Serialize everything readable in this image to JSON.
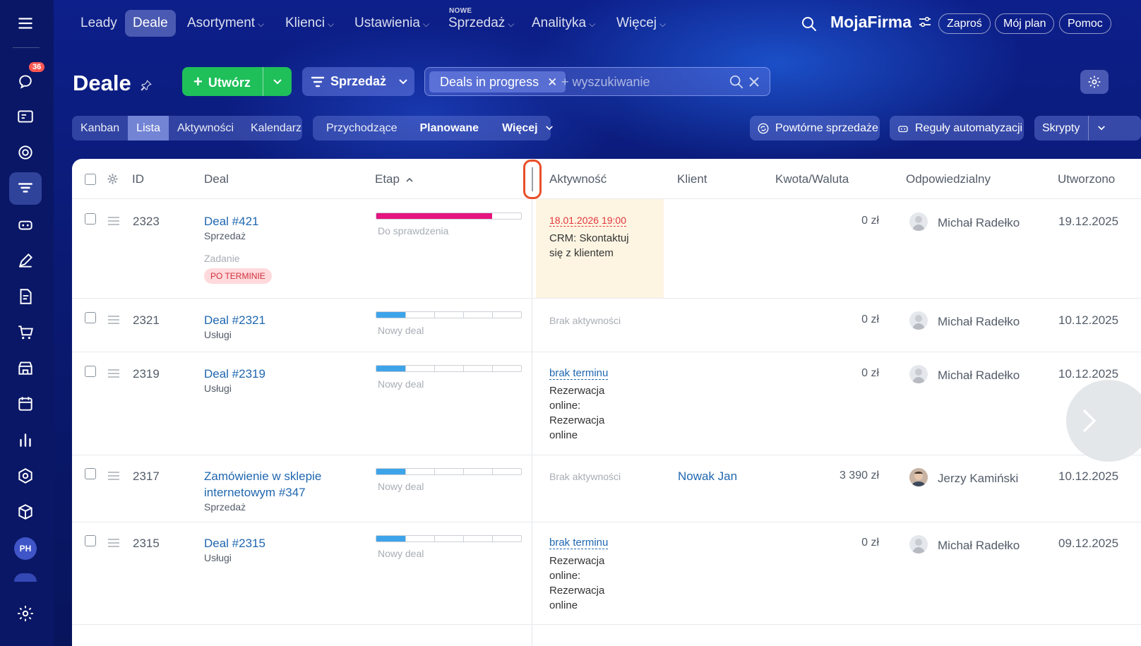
{
  "sidebar": {
    "badge_count": "36",
    "avatar_initials": "PH",
    "icons": [
      "menu-icon",
      "chat-icon",
      "contact-card-icon",
      "target-icon",
      "funnel-icon",
      "robot-icon",
      "pen-icon",
      "document-icon",
      "cart-icon",
      "store-icon",
      "calendar-icon",
      "chart-icon",
      "hexagon-icon",
      "box-icon",
      "settings-icon"
    ]
  },
  "topnav": {
    "items": [
      "Leady",
      "Deale",
      "Asortyment",
      "Klienci",
      "Ustawienia",
      "Sprzedaż",
      "Analityka",
      "Więcej"
    ],
    "new_label": "NOWE",
    "brand": "MojaFirma",
    "invite": "Zaproś",
    "plan": "Mój plan",
    "help": "Pomoc"
  },
  "header": {
    "title": "Deale",
    "create_label": "Utwórz",
    "pipeline_label": "Sprzedaż",
    "filter_tag": "Deals in progress",
    "search_placeholder": "+ wyszukiwanie"
  },
  "views": {
    "tabs": [
      "Kanban",
      "Lista",
      "Aktywności",
      "Kalendarz"
    ],
    "active_tab": "Lista",
    "filters": [
      "Przychodzące",
      "Planowane",
      "Więcej"
    ],
    "repeat_sales": "Powtórne sprzedaże",
    "automation": "Reguły automatyzacji",
    "scripts": "Skrypty"
  },
  "table": {
    "columns": [
      "ID",
      "Deal",
      "Etap",
      "Aktywność",
      "Klient",
      "Kwota/Waluta",
      "Odpowiedzialny",
      "Utworzono"
    ],
    "rows": [
      {
        "id": "2323",
        "deal": "Deal #421",
        "category": "Sprzedaż",
        "task_label": "Zadanie",
        "task_badge": "PO TERMINIE",
        "stage": "Do sprawdzenia",
        "stage_progress": 0.8,
        "stage_color": "#e5147f",
        "activity_date": "18.01.2026 19:00",
        "activity_text": "CRM: Skontaktuj się z klientem",
        "client": "",
        "amount": "0 zł",
        "responsible": "Michał Radełko",
        "created": "19.12.2025"
      },
      {
        "id": "2321",
        "deal": "Deal #2321",
        "category": "Usługi",
        "stage": "Nowy deal",
        "stage_progress": 0.2,
        "stage_color": "#3ea4ea",
        "activity_none": "Brak aktywności",
        "client": "",
        "amount": "0 zł",
        "responsible": "Michał Radełko",
        "created": "10.12.2025"
      },
      {
        "id": "2319",
        "deal": "Deal #2319",
        "category": "Usługi",
        "stage": "Nowy deal",
        "stage_progress": 0.2,
        "stage_color": "#3ea4ea",
        "activity_link": "brak terminu",
        "activity_text": "Rezerwacja online: Rezerwacja online",
        "client": "",
        "amount": "0 zł",
        "responsible": "Michał Radełko",
        "created": "10.12.2025"
      },
      {
        "id": "2317",
        "deal_line1": "Zamówienie w sklepie",
        "deal_line2": "internetowym #347",
        "category": "Sprzedaż",
        "stage": "Nowy deal",
        "stage_progress": 0.2,
        "stage_color": "#3ea4ea",
        "activity_none": "Brak aktywności",
        "client": "Nowak Jan",
        "amount": "3 390 zł",
        "responsible": "Jerzy Kamiński",
        "created": "10.12.2025"
      },
      {
        "id": "2315",
        "deal": "Deal #2315",
        "category": "Usługi",
        "stage": "Nowy deal",
        "stage_progress": 0.2,
        "stage_color": "#3ea4ea",
        "activity_link": "brak terminu",
        "activity_text": "Rezerwacja online: Rezerwacja online",
        "client": "",
        "amount": "0 zł",
        "responsible": "Michał Radełko",
        "created": "09.12.2025"
      }
    ]
  },
  "colors": {
    "accent_green": "#1fbf5a",
    "link": "#2067b0",
    "overdue": "#e3343c",
    "highlight_cell": "#fdf5e2",
    "annotation": "#e8502a"
  }
}
